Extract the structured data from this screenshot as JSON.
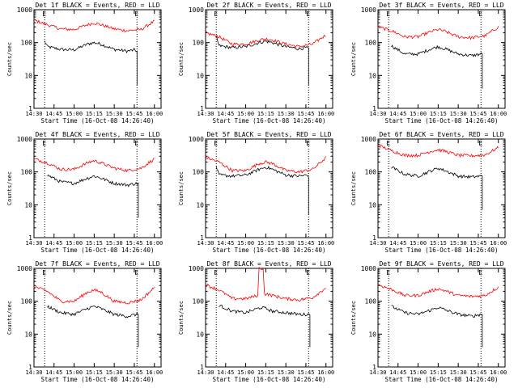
{
  "layout": "3x3 grid of detector count-rate plots",
  "colors": {
    "events": "#000000",
    "lld": "#ff0000",
    "axis": "#000000",
    "background": "#ffffff"
  },
  "chart_data": [
    {
      "type": "line",
      "title": "Det 1f BLACK = Events, RED = LLD",
      "xlabel": "Start Time (16-Oct-08 14:26:40)",
      "ylabel": "Counts/sec",
      "x_ticks": [
        "14:30",
        "14:45",
        "15:00",
        "15:15",
        "15:30",
        "15:45",
        "16:00"
      ],
      "y_ticks": [
        "1",
        "10",
        "100",
        "1000"
      ],
      "yscale": "log",
      "ylim": [
        1,
        1000
      ],
      "markers": [
        {
          "label": "E",
          "time": "14:38"
        },
        {
          "label": "E",
          "time": "15:47"
        }
      ],
      "series": [
        {
          "name": "Events",
          "color": "black",
          "times": [
            "14:38",
            "14:40",
            "14:50",
            "15:00",
            "15:10",
            "15:15",
            "15:20",
            "15:30",
            "15:40",
            "15:45",
            "15:47",
            "15:47"
          ],
          "values": [
            110,
            75,
            62,
            60,
            90,
            100,
            90,
            62,
            55,
            60,
            55,
            5
          ]
        },
        {
          "name": "LLD",
          "color": "red",
          "times": [
            "14:30",
            "14:40",
            "14:50",
            "15:00",
            "15:10",
            "15:15",
            "15:20",
            "15:30",
            "15:40",
            "15:50",
            "16:00"
          ],
          "values": [
            480,
            350,
            260,
            250,
            350,
            400,
            350,
            260,
            230,
            250,
            450
          ]
        }
      ]
    },
    {
      "type": "line",
      "title": "Det 2f BLACK = Events, RED = LLD",
      "xlabel": "Start Time (16-Oct-08 14:26:40)",
      "ylabel": "Counts/sec",
      "x_ticks": [
        "14:30",
        "14:45",
        "15:00",
        "15:15",
        "15:30",
        "15:45",
        "16:00"
      ],
      "y_ticks": [
        "1",
        "10",
        "100",
        "1000"
      ],
      "yscale": "log",
      "ylim": [
        1,
        1000
      ],
      "markers": [
        {
          "label": "E",
          "time": "14:38"
        },
        {
          "label": "E",
          "time": "15:47"
        }
      ],
      "series": [
        {
          "name": "Events",
          "color": "black",
          "times": [
            "14:38",
            "14:40",
            "14:50",
            "15:00",
            "15:10",
            "15:15",
            "15:20",
            "15:30",
            "15:40",
            "15:45",
            "15:47",
            "15:47"
          ],
          "values": [
            150,
            80,
            70,
            75,
            100,
            110,
            100,
            75,
            65,
            70,
            65,
            5
          ]
        },
        {
          "name": "LLD",
          "color": "red",
          "times": [
            "14:30",
            "14:40",
            "14:50",
            "15:00",
            "15:10",
            "15:15",
            "15:20",
            "15:30",
            "15:40",
            "15:50",
            "16:00"
          ],
          "values": [
            200,
            150,
            90,
            90,
            120,
            130,
            120,
            90,
            75,
            90,
            170
          ]
        }
      ]
    },
    {
      "type": "line",
      "title": "Det 3f BLACK = Events, RED = LLD",
      "xlabel": "Start Time (16-Oct-08 14:26:40)",
      "ylabel": "Counts/sec",
      "x_ticks": [
        "14:30",
        "14:45",
        "15:00",
        "15:15",
        "15:30",
        "15:45",
        "16:00"
      ],
      "y_ticks": [
        "1",
        "10",
        "100",
        "1000"
      ],
      "yscale": "log",
      "ylim": [
        1,
        1000
      ],
      "markers": [
        {
          "label": "E",
          "time": "14:38"
        },
        {
          "label": "E",
          "time": "15:47"
        }
      ],
      "series": [
        {
          "name": "Events",
          "color": "black",
          "times": [
            "14:40",
            "14:50",
            "15:00",
            "15:10",
            "15:15",
            "15:20",
            "15:30",
            "15:40",
            "15:47",
            "15:48",
            "15:48"
          ],
          "values": [
            80,
            45,
            45,
            65,
            75,
            65,
            45,
            40,
            45,
            45,
            4
          ]
        },
        {
          "name": "LLD",
          "color": "red",
          "times": [
            "14:30",
            "14:40",
            "14:50",
            "15:00",
            "15:10",
            "15:15",
            "15:20",
            "15:30",
            "15:40",
            "15:50",
            "16:00"
          ],
          "values": [
            300,
            230,
            150,
            150,
            220,
            250,
            220,
            150,
            140,
            160,
            300
          ]
        }
      ]
    },
    {
      "type": "line",
      "title": "Det 4f BLACK = Events, RED = LLD",
      "xlabel": "Start Time (16-Oct-08 14:26:40)",
      "ylabel": "Counts/sec",
      "x_ticks": [
        "14:30",
        "14:45",
        "15:00",
        "15:15",
        "15:30",
        "15:45",
        "16:00"
      ],
      "y_ticks": [
        "1",
        "10",
        "100",
        "1000"
      ],
      "yscale": "log",
      "ylim": [
        1,
        1000
      ],
      "markers": [
        {
          "label": "E",
          "time": "14:38"
        },
        {
          "label": "E",
          "time": "15:47"
        }
      ],
      "series": [
        {
          "name": "Events",
          "color": "black",
          "times": [
            "14:40",
            "14:50",
            "15:00",
            "15:10",
            "15:15",
            "15:20",
            "15:30",
            "15:40",
            "15:47",
            "15:48",
            "15:48"
          ],
          "values": [
            80,
            50,
            45,
            65,
            75,
            65,
            45,
            40,
            45,
            45,
            4
          ]
        },
        {
          "name": "LLD",
          "color": "red",
          "times": [
            "14:30",
            "14:40",
            "14:50",
            "15:00",
            "15:10",
            "15:15",
            "15:20",
            "15:30",
            "15:40",
            "15:50",
            "16:00"
          ],
          "values": [
            250,
            190,
            120,
            120,
            190,
            220,
            190,
            130,
            110,
            130,
            250
          ]
        }
      ]
    },
    {
      "type": "line",
      "title": "Det 5f BLACK = Events, RED = LLD",
      "xlabel": "Start Time (16-Oct-08 14:26:40)",
      "ylabel": "Counts/sec",
      "x_ticks": [
        "14:30",
        "14:45",
        "15:00",
        "15:15",
        "15:30",
        "15:45",
        "16:00"
      ],
      "y_ticks": [
        "1",
        "10",
        "100",
        "1000"
      ],
      "yscale": "log",
      "ylim": [
        1,
        1000
      ],
      "markers": [
        {
          "label": "E",
          "time": "14:38"
        },
        {
          "label": "E",
          "time": "15:47"
        }
      ],
      "series": [
        {
          "name": "Events",
          "color": "black",
          "times": [
            "14:38",
            "14:40",
            "14:50",
            "15:00",
            "15:10",
            "15:15",
            "15:20",
            "15:30",
            "15:40",
            "15:45",
            "15:47",
            "15:47"
          ],
          "values": [
            150,
            80,
            75,
            80,
            120,
            140,
            120,
            80,
            75,
            80,
            75,
            5
          ]
        },
        {
          "name": "LLD",
          "color": "red",
          "times": [
            "14:30",
            "14:40",
            "14:50",
            "15:00",
            "15:10",
            "15:15",
            "15:20",
            "15:30",
            "15:40",
            "15:50",
            "16:00"
          ],
          "values": [
            280,
            200,
            110,
            110,
            180,
            200,
            180,
            110,
            100,
            120,
            270
          ]
        }
      ]
    },
    {
      "type": "line",
      "title": "Det 6f BLACK = Events, RED = LLD",
      "xlabel": "Start Time (16-Oct-08 14:26:40)",
      "ylabel": "Counts/sec",
      "x_ticks": [
        "14:30",
        "14:45",
        "15:00",
        "15:15",
        "15:30",
        "15:45",
        "16:00"
      ],
      "y_ticks": [
        "1",
        "10",
        "100",
        "1000"
      ],
      "yscale": "log",
      "ylim": [
        1,
        1000
      ],
      "markers": [
        {
          "label": "E",
          "time": "14:38"
        },
        {
          "label": "E",
          "time": "15:47"
        }
      ],
      "series": [
        {
          "name": "Events",
          "color": "black",
          "times": [
            "14:40",
            "14:50",
            "15:00",
            "15:10",
            "15:15",
            "15:20",
            "15:30",
            "15:40",
            "15:47",
            "15:48",
            "15:48"
          ],
          "values": [
            140,
            85,
            75,
            110,
            130,
            110,
            75,
            70,
            75,
            75,
            7
          ]
        },
        {
          "name": "LLD",
          "color": "red",
          "times": [
            "14:30",
            "14:40",
            "14:50",
            "15:00",
            "15:10",
            "15:15",
            "15:20",
            "15:30",
            "15:40",
            "15:50",
            "16:00"
          ],
          "values": [
            650,
            450,
            320,
            320,
            430,
            470,
            430,
            320,
            310,
            330,
            550
          ]
        }
      ]
    },
    {
      "type": "line",
      "title": "Det 7f BLACK = Events, RED = LLD",
      "xlabel": "Start Time (16-Oct-08 14:26:40)",
      "ylabel": "Counts/sec",
      "x_ticks": [
        "14:30",
        "14:45",
        "15:00",
        "15:15",
        "15:30",
        "15:45",
        "16:00"
      ],
      "y_ticks": [
        "1",
        "10",
        "100",
        "1000"
      ],
      "yscale": "log",
      "ylim": [
        1,
        1000
      ],
      "markers": [
        {
          "label": "E",
          "time": "14:38"
        },
        {
          "label": "E",
          "time": "15:47"
        }
      ],
      "series": [
        {
          "name": "Events",
          "color": "black",
          "times": [
            "14:40",
            "14:50",
            "15:00",
            "15:10",
            "15:15",
            "15:20",
            "15:30",
            "15:40",
            "15:47",
            "15:48",
            "15:48"
          ],
          "values": [
            70,
            45,
            40,
            60,
            70,
            60,
            40,
            35,
            40,
            40,
            4
          ]
        },
        {
          "name": "LLD",
          "color": "red",
          "times": [
            "14:30",
            "14:40",
            "14:50",
            "15:00",
            "15:10",
            "15:15",
            "15:20",
            "15:30",
            "15:40",
            "15:50",
            "16:00"
          ],
          "values": [
            280,
            200,
            100,
            100,
            190,
            220,
            190,
            100,
            90,
            110,
            260
          ]
        }
      ]
    },
    {
      "type": "line",
      "title": "Det 8f BLACK = Events, RED = LLD",
      "xlabel": "Start Time (16-Oct-08 14:26:40)",
      "ylabel": "Counts/sec",
      "x_ticks": [
        "14:30",
        "14:45",
        "15:00",
        "15:15",
        "15:30",
        "15:45",
        "16:00"
      ],
      "y_ticks": [
        "1",
        "10",
        "100",
        "1000"
      ],
      "yscale": "log",
      "ylim": [
        1,
        1000
      ],
      "markers": [
        {
          "label": "E",
          "time": "14:38"
        },
        {
          "label": "E",
          "time": "15:47"
        }
      ],
      "series": [
        {
          "name": "Events",
          "color": "black",
          "times": [
            "14:40",
            "14:50",
            "15:00",
            "15:09",
            "15:12",
            "15:15",
            "15:20",
            "15:30",
            "15:40",
            "15:47",
            "15:48",
            "15:48"
          ],
          "values": [
            75,
            50,
            45,
            60,
            65,
            60,
            50,
            45,
            40,
            40,
            40,
            4
          ]
        },
        {
          "name": "LLD",
          "color": "red",
          "times": [
            "14:30",
            "14:40",
            "14:50",
            "15:00",
            "15:09",
            "15:10",
            "15:13",
            "15:14",
            "15:20",
            "15:30",
            "15:40",
            "15:50",
            "16:00"
          ],
          "values": [
            320,
            220,
            120,
            120,
            150,
            1000,
            1000,
            170,
            150,
            120,
            110,
            130,
            260
          ]
        }
      ]
    },
    {
      "type": "line",
      "title": "Det 9f BLACK = Events, RED = LLD",
      "xlabel": "Start Time (16-Oct-08 14:26:40)",
      "ylabel": "Counts/sec",
      "x_ticks": [
        "14:30",
        "14:45",
        "15:00",
        "15:15",
        "15:30",
        "15:45",
        "16:00"
      ],
      "y_ticks": [
        "1",
        "10",
        "100",
        "1000"
      ],
      "yscale": "log",
      "ylim": [
        1,
        1000
      ],
      "markers": [
        {
          "label": "E",
          "time": "14:38"
        },
        {
          "label": "E",
          "time": "15:47"
        }
      ],
      "series": [
        {
          "name": "Events",
          "color": "black",
          "times": [
            "14:40",
            "14:50",
            "15:00",
            "15:10",
            "15:15",
            "15:20",
            "15:30",
            "15:40",
            "15:47",
            "15:48",
            "15:48"
          ],
          "values": [
            70,
            45,
            40,
            55,
            65,
            55,
            40,
            35,
            40,
            40,
            4
          ]
        },
        {
          "name": "LLD",
          "color": "red",
          "times": [
            "14:30",
            "14:40",
            "14:50",
            "15:00",
            "15:10",
            "15:15",
            "15:20",
            "15:30",
            "15:40",
            "15:50",
            "16:00"
          ],
          "values": [
            320,
            230,
            150,
            150,
            210,
            240,
            210,
            150,
            140,
            150,
            270
          ]
        }
      ]
    }
  ]
}
